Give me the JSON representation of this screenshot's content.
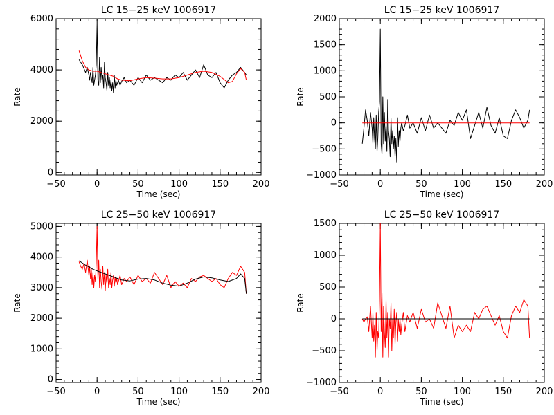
{
  "chart_data": [
    {
      "type": "line",
      "title": "LC 15−25 keV  1006917",
      "xlabel": "Time (sec)",
      "ylabel": "Rate",
      "xlim": [
        -50,
        200
      ],
      "ylim": [
        -100,
        6000
      ],
      "xticks": [
        -50,
        0,
        50,
        100,
        150,
        200
      ],
      "xtick_labels": [
        "−50",
        "0",
        "50",
        "100",
        "150",
        "200"
      ],
      "yticks": [
        0,
        2000,
        4000,
        6000
      ],
      "ytick_labels": [
        "0",
        "2000",
        "4000",
        "6000"
      ],
      "grid": false,
      "series": [
        {
          "color": "#000000",
          "x": [
            -22,
            -20,
            -18,
            -16,
            -14,
            -12,
            -10,
            -9,
            -8,
            -7,
            -6,
            -5,
            -4,
            -3,
            -2,
            -1,
            0,
            1,
            2,
            3,
            4,
            5,
            6,
            7,
            8,
            9,
            10,
            11,
            12,
            13,
            14,
            15,
            16,
            17,
            18,
            19,
            20,
            21,
            22,
            23,
            24,
            25,
            26,
            28,
            30,
            33,
            36,
            40,
            45,
            50,
            55,
            60,
            65,
            70,
            75,
            80,
            85,
            90,
            95,
            100,
            105,
            110,
            115,
            120,
            125,
            130,
            135,
            140,
            145,
            150,
            155,
            160,
            165,
            170,
            175,
            180,
            182
          ],
          "y": [
            4400,
            4300,
            4200,
            4050,
            3900,
            4100,
            3800,
            3600,
            3900,
            3700,
            3500,
            4100,
            3400,
            3600,
            3800,
            4200,
            5800,
            3600,
            3400,
            4500,
            3500,
            4100,
            3600,
            3800,
            3300,
            4300,
            3700,
            3500,
            3200,
            3900,
            3400,
            3700,
            3300,
            3600,
            3200,
            3500,
            3100,
            3800,
            3300,
            3600,
            3400,
            3500,
            3600,
            3400,
            3550,
            3700,
            3500,
            3600,
            3400,
            3700,
            3500,
            3800,
            3600,
            3700,
            3600,
            3500,
            3700,
            3600,
            3800,
            3700,
            3900,
            3600,
            3800,
            4000,
            3700,
            4200,
            3800,
            3700,
            3900,
            3500,
            3300,
            3600,
            3800,
            3900,
            4100,
            3900,
            3800
          ]
        },
        {
          "color": "#ff0000",
          "x": [
            -22,
            -18,
            -14,
            -10,
            -5,
            0,
            5,
            10,
            15,
            20,
            25,
            30,
            40,
            50,
            60,
            70,
            80,
            90,
            100,
            110,
            120,
            130,
            140,
            150,
            160,
            165,
            170,
            175,
            180,
            182
          ],
          "y": [
            4750,
            4350,
            4100,
            4000,
            3950,
            3950,
            3900,
            3850,
            3800,
            3750,
            3650,
            3600,
            3580,
            3650,
            3700,
            3680,
            3650,
            3650,
            3700,
            3800,
            3900,
            3950,
            3900,
            3750,
            3500,
            3550,
            3850,
            4050,
            3900,
            3600
          ]
        }
      ]
    },
    {
      "type": "line",
      "title": "LC 15−25 keV  1006917",
      "xlabel": "Time (sec)",
      "ylabel": "Rate",
      "xlim": [
        -50,
        200
      ],
      "ylim": [
        -1000,
        2000
      ],
      "xticks": [
        -50,
        0,
        50,
        100,
        150,
        200
      ],
      "xtick_labels": [
        "−50",
        "0",
        "50",
        "100",
        "150",
        "200"
      ],
      "yticks": [
        -1000,
        -500,
        0,
        500,
        1000,
        1500,
        2000
      ],
      "ytick_labels": [
        "−1000",
        "−500",
        "0",
        "500",
        "1000",
        "1500",
        "2000"
      ],
      "grid": false,
      "series": [
        {
          "color": "#000000",
          "x": [
            -22,
            -20,
            -18,
            -16,
            -14,
            -12,
            -10,
            -9,
            -8,
            -7,
            -6,
            -5,
            -4,
            -3,
            -2,
            -1,
            0,
            1,
            2,
            3,
            4,
            5,
            6,
            7,
            8,
            9,
            10,
            11,
            12,
            13,
            14,
            15,
            16,
            17,
            18,
            19,
            20,
            21,
            22,
            23,
            24,
            25,
            26,
            28,
            30,
            33,
            36,
            40,
            45,
            50,
            55,
            60,
            65,
            70,
            75,
            80,
            85,
            90,
            95,
            100,
            105,
            110,
            115,
            120,
            125,
            130,
            135,
            140,
            145,
            150,
            155,
            160,
            165,
            170,
            175,
            180,
            182
          ],
          "y": [
            -400,
            -100,
            250,
            50,
            -250,
            200,
            -100,
            -400,
            100,
            -300,
            -500,
            150,
            -550,
            -300,
            200,
            400,
            1800,
            -400,
            -600,
            500,
            -400,
            200,
            -350,
            -50,
            -550,
            450,
            -150,
            -300,
            -650,
            100,
            -400,
            -150,
            -500,
            -250,
            -650,
            -300,
            -750,
            100,
            -450,
            -150,
            -350,
            -100,
            0,
            -150,
            -50,
            150,
            -100,
            0,
            -200,
            100,
            -150,
            150,
            -100,
            0,
            -100,
            -200,
            50,
            -50,
            200,
            50,
            250,
            -300,
            -50,
            200,
            -100,
            300,
            -50,
            -200,
            100,
            -250,
            -300,
            50,
            250,
            100,
            -100,
            50,
            250
          ]
        },
        {
          "color": "#ff0000",
          "x": [
            -22,
            182
          ],
          "y": [
            0,
            0
          ]
        }
      ]
    },
    {
      "type": "line",
      "title": "LC 25−50 keV  1006917",
      "xlabel": "Time (sec)",
      "ylabel": "Rate",
      "xlim": [
        -50,
        200
      ],
      "ylim": [
        -100,
        5100
      ],
      "xticks": [
        -50,
        0,
        50,
        100,
        150,
        200
      ],
      "xtick_labels": [
        "−50",
        "0",
        "50",
        "100",
        "150",
        "200"
      ],
      "yticks": [
        0,
        1000,
        2000,
        3000,
        4000,
        5000
      ],
      "ytick_labels": [
        "0",
        "1000",
        "2000",
        "3000",
        "4000",
        "5000"
      ],
      "grid": false,
      "series": [
        {
          "color": "#ff0000",
          "x": [
            -22,
            -20,
            -18,
            -16,
            -14,
            -12,
            -10,
            -9,
            -8,
            -7,
            -6,
            -5,
            -4,
            -3,
            -2,
            -1,
            0,
            1,
            2,
            3,
            4,
            5,
            6,
            7,
            8,
            9,
            10,
            11,
            12,
            13,
            14,
            15,
            16,
            17,
            18,
            19,
            20,
            21,
            22,
            23,
            24,
            25,
            26,
            28,
            30,
            33,
            36,
            40,
            45,
            50,
            55,
            60,
            65,
            70,
            75,
            80,
            85,
            90,
            95,
            100,
            105,
            110,
            115,
            120,
            125,
            130,
            135,
            140,
            145,
            150,
            155,
            160,
            165,
            170,
            175,
            180,
            182
          ],
          "y": [
            3850,
            3700,
            3600,
            3800,
            3500,
            3900,
            3400,
            3700,
            3300,
            3600,
            3100,
            3500,
            3000,
            3400,
            3200,
            3800,
            5000,
            3300,
            3900,
            3000,
            3600,
            3200,
            2950,
            3700,
            3100,
            3500,
            2900,
            3400,
            3150,
            3600,
            3000,
            3300,
            3100,
            3500,
            3000,
            3250,
            3400,
            3050,
            3350,
            3150,
            3300,
            3100,
            3200,
            3400,
            3100,
            3300,
            3200,
            3350,
            3100,
            3400,
            3200,
            3300,
            3150,
            3500,
            3300,
            3100,
            3400,
            3000,
            3200,
            3050,
            3150,
            3000,
            3300,
            3200,
            3350,
            3400,
            3300,
            3200,
            3300,
            3100,
            3000,
            3300,
            3500,
            3400,
            3700,
            3500,
            2800
          ]
        },
        {
          "color": "#000000",
          "x": [
            -22,
            -15,
            -10,
            -5,
            0,
            10,
            20,
            30,
            40,
            50,
            60,
            70,
            80,
            90,
            100,
            110,
            120,
            130,
            140,
            150,
            160,
            170,
            175,
            180,
            182
          ],
          "y": [
            3880,
            3750,
            3680,
            3600,
            3550,
            3450,
            3350,
            3250,
            3220,
            3280,
            3300,
            3250,
            3150,
            3080,
            3050,
            3150,
            3280,
            3350,
            3320,
            3250,
            3200,
            3300,
            3450,
            3300,
            2800
          ]
        }
      ]
    },
    {
      "type": "line",
      "title": "LC 25−50 keV  1006917",
      "xlabel": "Time (sec)",
      "ylabel": "Rate",
      "xlim": [
        -50,
        200
      ],
      "ylim": [
        -1000,
        1500
      ],
      "xticks": [
        -50,
        0,
        50,
        100,
        150,
        200
      ],
      "xtick_labels": [
        "−50",
        "0",
        "50",
        "100",
        "150",
        "200"
      ],
      "yticks": [
        -1000,
        -500,
        0,
        500,
        1000,
        1500
      ],
      "ytick_labels": [
        "−1000",
        "−500",
        "0",
        "500",
        "1000",
        "1500"
      ],
      "grid": false,
      "series": [
        {
          "color": "#ff0000",
          "x": [
            -22,
            -20,
            -18,
            -16,
            -14,
            -12,
            -10,
            -9,
            -8,
            -7,
            -6,
            -5,
            -4,
            -3,
            -2,
            -1,
            0,
            1,
            2,
            3,
            4,
            5,
            6,
            7,
            8,
            9,
            10,
            11,
            12,
            13,
            14,
            15,
            16,
            17,
            18,
            19,
            20,
            21,
            22,
            23,
            24,
            25,
            26,
            28,
            30,
            33,
            36,
            40,
            45,
            50,
            55,
            60,
            65,
            70,
            75,
            80,
            85,
            90,
            95,
            100,
            105,
            110,
            115,
            120,
            125,
            130,
            135,
            140,
            145,
            150,
            155,
            160,
            165,
            170,
            175,
            180,
            182
          ],
          "y": [
            0,
            -50,
            0,
            30,
            -200,
            200,
            -300,
            100,
            -350,
            -100,
            -600,
            100,
            -500,
            -200,
            -300,
            300,
            1500,
            -200,
            400,
            -600,
            200,
            -200,
            -450,
            300,
            -300,
            100,
            -600,
            0,
            -150,
            250,
            -500,
            0,
            -300,
            150,
            -400,
            -50,
            100,
            -350,
            0,
            -200,
            0,
            -250,
            -100,
            100,
            -200,
            50,
            -50,
            100,
            -150,
            150,
            -50,
            0,
            -150,
            250,
            50,
            -150,
            200,
            -300,
            -100,
            -200,
            -100,
            -200,
            100,
            0,
            150,
            200,
            50,
            -100,
            50,
            -200,
            -300,
            50,
            200,
            100,
            300,
            200,
            -300
          ]
        },
        {
          "color": "#000000",
          "x": [
            -22,
            182
          ],
          "y": [
            0,
            0
          ]
        }
      ]
    }
  ]
}
